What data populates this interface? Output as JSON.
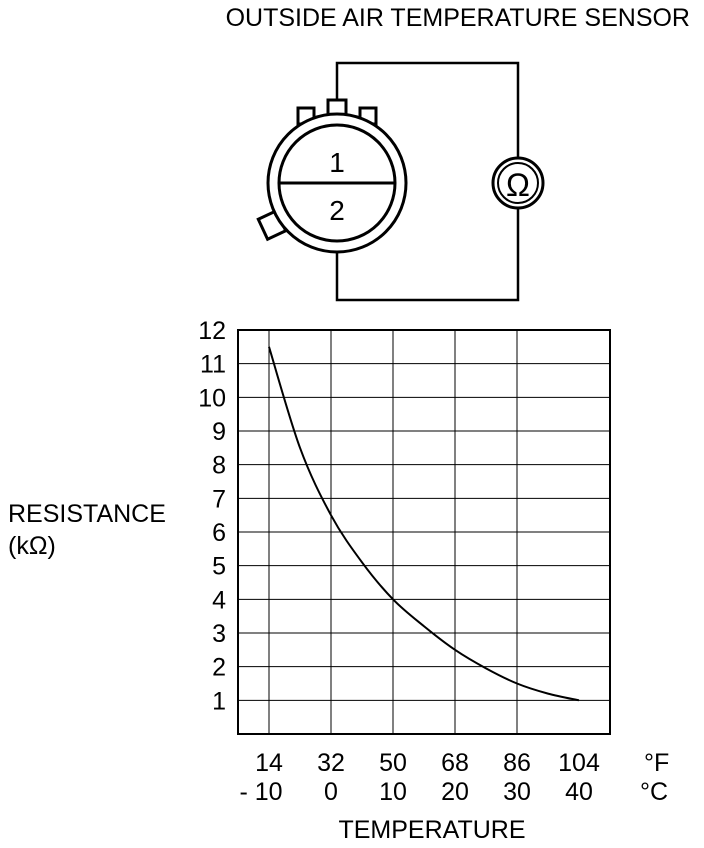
{
  "title": "OUTSIDE AIR TEMPERATURE SENSOR",
  "connector": {
    "pin_top": "1",
    "pin_bottom": "2",
    "meter_symbol": "Ω"
  },
  "chart_data": {
    "type": "line",
    "ylabel_line1": "RESISTANCE",
    "ylabel_line2": "(kΩ)",
    "xlabel": "TEMPERATURE",
    "y_ticks": [
      "1",
      "2",
      "3",
      "4",
      "5",
      "6",
      "7",
      "8",
      "9",
      "10",
      "11",
      "12"
    ],
    "ylim": [
      0,
      12
    ],
    "x_ticks_f": [
      "14",
      "32",
      "50",
      "68",
      "86",
      "104"
    ],
    "x_unit_f": "°F",
    "x_ticks_c": [
      "- 10",
      "0",
      "10",
      "20",
      "30",
      "40"
    ],
    "x_unit_c": "°C",
    "xlim_c": [
      -15,
      45
    ],
    "grid": true,
    "series": [
      {
        "x": [
          -10,
          -5,
          0,
          5,
          10,
          15,
          20,
          25,
          30,
          35,
          40
        ],
        "values": [
          11.5,
          8.5,
          6.5,
          5.1,
          4.0,
          3.2,
          2.5,
          1.95,
          1.5,
          1.2,
          1.0
        ]
      }
    ]
  }
}
